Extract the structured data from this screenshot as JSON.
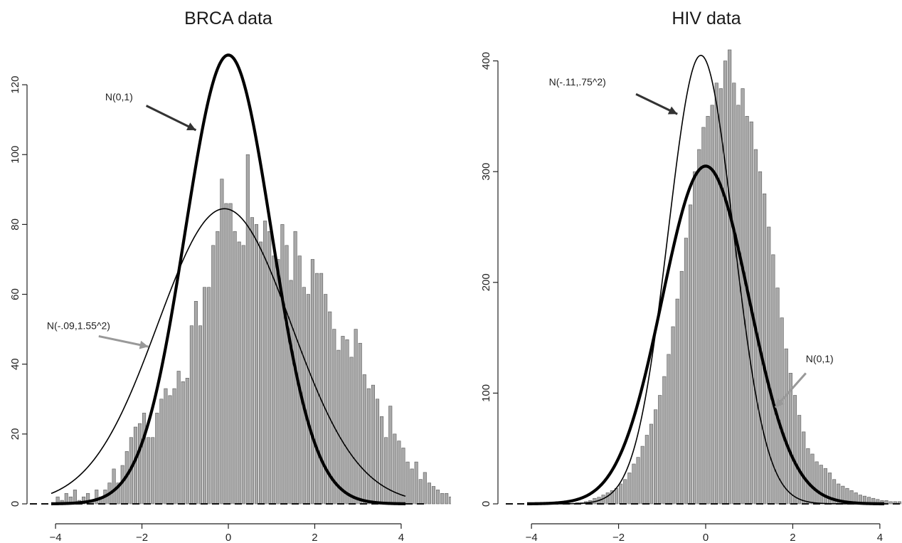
{
  "chart_data": [
    {
      "type": "bar",
      "title": "BRCA data",
      "xlabel": "",
      "ylabel": "",
      "xlim": [
        -4.1,
        4.1
      ],
      "ylim": [
        0,
        130
      ],
      "xticks": [
        -4,
        -2,
        0,
        2,
        4
      ],
      "yticks": [
        0,
        20,
        40,
        60,
        80,
        100,
        120
      ],
      "bin_start": -4.0,
      "bin_width": 0.1,
      "bar_color": "#a9a9a9",
      "values": [
        2,
        1,
        3,
        2,
        4,
        1,
        2,
        3,
        1,
        4,
        2,
        4,
        6,
        10,
        6,
        11,
        15,
        19,
        22,
        23,
        26,
        19,
        19,
        26,
        30,
        33,
        31,
        33,
        38,
        35,
        36,
        51,
        58,
        51,
        62,
        62,
        74,
        78,
        93,
        86,
        86,
        78,
        75,
        74,
        100,
        82,
        80,
        75,
        81,
        78,
        71,
        70,
        80,
        74,
        64,
        78,
        71,
        62,
        60,
        70,
        66,
        66,
        60,
        55,
        50,
        44,
        48,
        47,
        42,
        50,
        46,
        37,
        33,
        34,
        30,
        25,
        19,
        28,
        20,
        18,
        16,
        12,
        10,
        12,
        7,
        9,
        6,
        5,
        4,
        3,
        3,
        2,
        3,
        2,
        2,
        1,
        2,
        1,
        1,
        1
      ],
      "curves": [
        {
          "label": "N(0,1)",
          "mean": 0,
          "sd": 1,
          "peak": 128.5,
          "stroke": "#000000",
          "width": 4.2
        },
        {
          "label": "N(-.09,1.55^2)",
          "mean": -0.09,
          "sd": 1.55,
          "peak": 84.5,
          "stroke": "#000000",
          "width": 1.6
        }
      ],
      "annotations": [
        {
          "text": "N(0,1)",
          "tx": -2.85,
          "ty": 115.5,
          "ax0": -1.9,
          "ay0": 114,
          "ax1": -0.75,
          "ay1": 107,
          "color": "#333333"
        },
        {
          "text": "N(-.09,1.55^2)",
          "tx": -4.2,
          "ty": 50,
          "ax0": -3.0,
          "ay0": 48,
          "ax1": -1.85,
          "ay1": 45,
          "color": "#999999"
        }
      ]
    },
    {
      "type": "bar",
      "title": "HIV data",
      "xlabel": "",
      "ylabel": "",
      "xlim": [
        -4.1,
        4.1
      ],
      "ylim": [
        0,
        410
      ],
      "xticks": [
        -4,
        -2,
        0,
        2,
        4
      ],
      "yticks": [
        0,
        100,
        200,
        300,
        400
      ],
      "bin_start": -3.0,
      "bin_width": 0.1,
      "bar_color": "#a9a9a9",
      "values": [
        1,
        1,
        2,
        3,
        5,
        6,
        8,
        10,
        12,
        14,
        18,
        22,
        28,
        36,
        42,
        52,
        62,
        72,
        85,
        98,
        115,
        135,
        160,
        185,
        210,
        240,
        270,
        300,
        320,
        340,
        350,
        360,
        380,
        375,
        400,
        410,
        380,
        360,
        375,
        350,
        345,
        320,
        300,
        280,
        250,
        225,
        195,
        168,
        140,
        118,
        98,
        80,
        65,
        50,
        45,
        38,
        35,
        32,
        28,
        22,
        18,
        16,
        14,
        12,
        10,
        8,
        7,
        6,
        5,
        4,
        3,
        3,
        2,
        2,
        2,
        1,
        1,
        1,
        1,
        1,
        1,
        1,
        1,
        1,
        1,
        1,
        1,
        1,
        1,
        1,
        1,
        1,
        1,
        1,
        1,
        1,
        1,
        1,
        1,
        1,
        1,
        14
      ],
      "curves": [
        {
          "label": "N(-.11,.75^2)",
          "mean": -0.11,
          "sd": 0.75,
          "peak": 405,
          "stroke": "#000000",
          "width": 1.6
        },
        {
          "label": "N(0,1)",
          "mean": 0,
          "sd": 1,
          "peak": 305,
          "stroke": "#000000",
          "width": 4.2
        }
      ],
      "annotations": [
        {
          "text": "N(-.11,.75^2)",
          "tx": -3.6,
          "ty": 378,
          "ax0": -1.6,
          "ay0": 370,
          "ax1": -0.65,
          "ay1": 352,
          "color": "#333333"
        },
        {
          "text": "N(0,1)",
          "tx": 2.3,
          "ty": 128,
          "ax0": 2.3,
          "ay0": 118,
          "ax1": 1.6,
          "ay1": 87,
          "color": "#999999"
        }
      ]
    }
  ]
}
